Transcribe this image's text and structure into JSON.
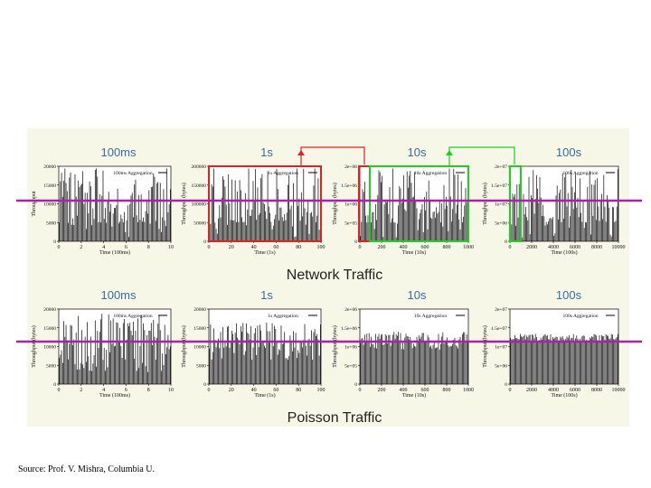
{
  "source_text": "Source: Prof. V. Mishra, Columbia U.",
  "section_titles": {
    "network": "Network Traffic",
    "poisson": "Poisson Traffic"
  },
  "chart_data": [
    {
      "type": "bar",
      "row": "network",
      "title": "100ms",
      "legend": "100ms Aggregation",
      "xlabel": "Time (100ms)",
      "ylabel": "Throughput",
      "xticks": [
        "0",
        "2",
        "4",
        "6",
        "8",
        "10"
      ],
      "yticks": [
        "0",
        "5000",
        "10000",
        "15000",
        "20000"
      ],
      "xlim": [
        0,
        10
      ],
      "ylim": [
        0,
        20000
      ],
      "n_points": 100
    },
    {
      "type": "bar",
      "row": "network",
      "title": "1s",
      "legend": "1s Aggregation",
      "xlabel": "Time (1s)",
      "ylabel": "Throughput (bytes)",
      "xticks": [
        "0",
        "20",
        "40",
        "60",
        "80",
        "100"
      ],
      "yticks": [
        "0",
        "50000",
        "100000",
        "150000",
        "200000"
      ],
      "xlim": [
        0,
        100
      ],
      "ylim": [
        0,
        200000
      ],
      "n_points": 100
    },
    {
      "type": "bar",
      "row": "network",
      "title": "10s",
      "legend": "10s Aggregation",
      "xlabel": "Time (10s)",
      "ylabel": "Throughput (bytes)",
      "xticks": [
        "0",
        "200",
        "400",
        "600",
        "800",
        "1000"
      ],
      "yticks": [
        "0",
        "5e+05",
        "1e+06",
        "1.5e+06",
        "2e+06"
      ],
      "xlim": [
        0,
        1000
      ],
      "ylim": [
        0,
        2000000
      ],
      "n_points": 100
    },
    {
      "type": "bar",
      "row": "network",
      "title": "100s",
      "legend": "100s Aggregation",
      "xlabel": "Time (100s)",
      "ylabel": "Throughput (bytes)",
      "xticks": [
        "0",
        "2000",
        "4000",
        "6000",
        "8000",
        "10000"
      ],
      "yticks": [
        "0",
        "5e+06",
        "1e+07",
        "1.5e+07",
        "2e+07"
      ],
      "xlim": [
        0,
        10000
      ],
      "ylim": [
        0,
        20000000
      ],
      "n_points": 100
    },
    {
      "type": "bar",
      "row": "poisson",
      "title": "100ms",
      "legend": "100ms Aggregation",
      "xlabel": "Time (100ms)",
      "ylabel": "Throughput (bytes)",
      "xticks": [
        "0",
        "2",
        "4",
        "6",
        "8",
        "10"
      ],
      "yticks": [
        "0",
        "5000",
        "10000",
        "15000",
        "20000"
      ],
      "xlim": [
        0,
        10
      ],
      "ylim": [
        0,
        20000
      ],
      "n_points": 100
    },
    {
      "type": "bar",
      "row": "poisson",
      "title": "1s",
      "legend": "1s Aggregation",
      "xlabel": "Time (1s)",
      "ylabel": "Throughput (bytes)",
      "xticks": [
        "0",
        "20",
        "40",
        "60",
        "80",
        "100"
      ],
      "yticks": [
        "0",
        "5000",
        "10000",
        "15000",
        "20000"
      ],
      "xlim": [
        0,
        100
      ],
      "ylim": [
        0,
        20000
      ],
      "n_points": 100
    },
    {
      "type": "bar",
      "row": "poisson",
      "title": "10s",
      "legend": "10s Aggregation",
      "xlabel": "Time (10s)",
      "ylabel": "Throughput (bytes)",
      "xticks": [
        "0",
        "200",
        "400",
        "600",
        "800",
        "1000"
      ],
      "yticks": [
        "0",
        "5e+05",
        "1e+06",
        "1.5e+06",
        "2e+06"
      ],
      "xlim": [
        0,
        1000
      ],
      "ylim": [
        0,
        2000000
      ],
      "n_points": 100
    },
    {
      "type": "bar",
      "row": "poisson",
      "title": "100s",
      "legend": "100s Aggregation",
      "xlabel": "Time (100s)",
      "ylabel": "Throughput (bytes)",
      "xticks": [
        "0",
        "2000",
        "4000",
        "6000",
        "8000",
        "10000"
      ],
      "yticks": [
        "0",
        "5e+06",
        "1e+07",
        "1.5e+07",
        "2e+07"
      ],
      "xlim": [
        0,
        10000
      ],
      "ylim": [
        0,
        20000000
      ],
      "n_points": 100
    }
  ],
  "colors": {
    "title_blue": "#3a6aa0",
    "zoom_red": "#dd2222",
    "zoom_green": "#22cc22",
    "mean_line": "#aa22aa"
  }
}
